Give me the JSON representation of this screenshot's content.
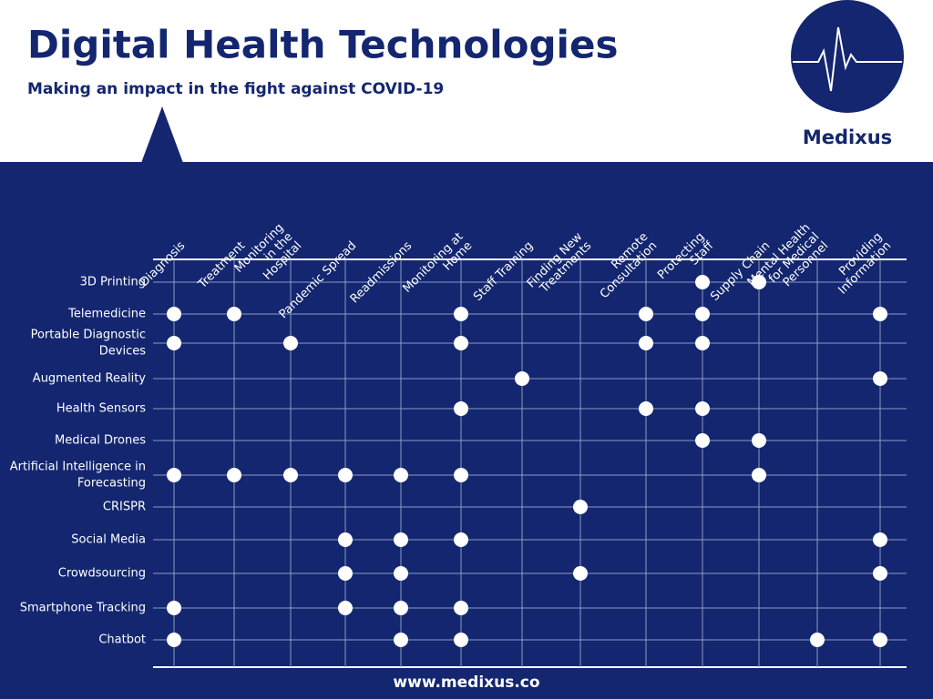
{
  "header": {
    "title": "Digital Health Technologies",
    "subtitle": "Making an impact in the fight against COVID-19"
  },
  "logo": {
    "name": "Medixus"
  },
  "columns": [
    {
      "lines": [
        "Diagnosis"
      ]
    },
    {
      "lines": [
        "Treatment"
      ]
    },
    {
      "lines": [
        "Monitoring",
        "in the",
        "Hospital"
      ]
    },
    {
      "lines": [
        "Pandemic Spread"
      ]
    },
    {
      "lines": [
        "Readmissions"
      ]
    },
    {
      "lines": [
        "Monitoring at",
        "Home"
      ]
    },
    {
      "lines": [
        "Staff Training"
      ]
    },
    {
      "lines": [
        "Finding New",
        "Treatments"
      ]
    },
    {
      "lines": [
        "Remote",
        "Consultation"
      ]
    },
    {
      "lines": [
        "Protecting",
        "Staff"
      ]
    },
    {
      "lines": [
        "Supply Chain"
      ]
    },
    {
      "lines": [
        "Mental Health",
        "for Medical",
        "Personnel"
      ]
    },
    {
      "lines": [
        "Providing",
        "Information"
      ]
    }
  ],
  "rows": [
    {
      "lines": [
        "3D Printing"
      ],
      "marks": [
        9,
        10
      ]
    },
    {
      "lines": [
        "Telemedicine"
      ],
      "marks": [
        0,
        1,
        5,
        8,
        9,
        12
      ]
    },
    {
      "lines": [
        "Portable Diagnostic",
        "Devices"
      ],
      "marks": [
        0,
        2,
        5,
        8,
        9
      ]
    },
    {
      "lines": [
        "Augmented Reality"
      ],
      "marks": [
        6,
        12
      ]
    },
    {
      "lines": [
        "Health Sensors"
      ],
      "marks": [
        5,
        8,
        9
      ]
    },
    {
      "lines": [
        "Medical Drones"
      ],
      "marks": [
        9,
        10
      ]
    },
    {
      "lines": [
        "Artificial Intelligence in",
        "Forecasting"
      ],
      "marks": [
        0,
        1,
        2,
        3,
        4,
        5,
        10
      ]
    },
    {
      "lines": [
        "CRISPR"
      ],
      "marks": [
        7
      ]
    },
    {
      "lines": [
        "Social Media"
      ],
      "marks": [
        3,
        4,
        5,
        12
      ]
    },
    {
      "lines": [
        "Crowdsourcing"
      ],
      "marks": [
        3,
        4,
        7,
        12
      ]
    },
    {
      "lines": [
        "Smartphone Tracking"
      ],
      "marks": [
        0,
        3,
        4,
        5
      ]
    },
    {
      "lines": [
        "Chatbot"
      ],
      "marks": [
        0,
        4,
        5,
        11,
        12
      ]
    }
  ],
  "footer": {
    "url": "www.medixus.co"
  }
}
